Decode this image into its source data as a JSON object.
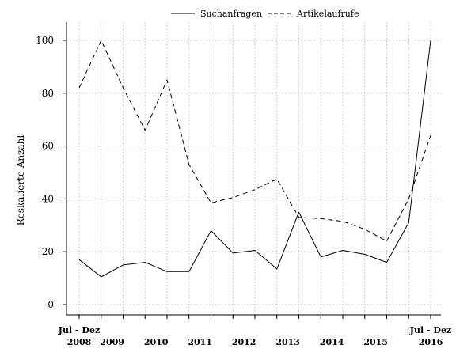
{
  "chart_data": {
    "type": "line",
    "title": "",
    "xlabel": "",
    "ylabel": "Reskalierte Anzahl",
    "ylim": [
      0,
      100
    ],
    "yticks": [
      0,
      20,
      40,
      60,
      80,
      100
    ],
    "grid": true,
    "legend_position": "top",
    "x": [
      "2008H2",
      "2009H1",
      "2009H2",
      "2010H1",
      "2010H2",
      "2011H1",
      "2011H2",
      "2012H1",
      "2012H2",
      "2013H1",
      "2013H2",
      "2014H1",
      "2014H2",
      "2015H1",
      "2015H2",
      "2016H1",
      "2016H2"
    ],
    "x_tick_labels": [
      {
        "period": 0,
        "top": "Jul - Dez",
        "bottom": "2008"
      },
      {
        "period": 1,
        "top": "",
        "bottom": "2009"
      },
      {
        "period": 3,
        "top": "",
        "bottom": "2010"
      },
      {
        "period": 5,
        "top": "",
        "bottom": "2011"
      },
      {
        "period": 7,
        "top": "",
        "bottom": "2012"
      },
      {
        "period": 9,
        "top": "",
        "bottom": "2013"
      },
      {
        "period": 11,
        "top": "",
        "bottom": "2014"
      },
      {
        "period": 13,
        "top": "",
        "bottom": "2015"
      },
      {
        "period": 16,
        "top": "Jul - Dez",
        "bottom": "2016"
      }
    ],
    "series": [
      {
        "name": "Suchanfragen",
        "dash": "solid",
        "color": "#000000",
        "values": [
          17,
          10.5,
          15,
          16,
          12.5,
          12.5,
          28,
          19.5,
          20.5,
          13.5,
          35,
          18,
          20.5,
          19,
          16,
          31,
          100
        ]
      },
      {
        "name": "Artikelaufrufe",
        "dash": "dashed",
        "color": "#000000",
        "values": [
          82,
          100,
          82,
          66,
          85,
          53,
          38.5,
          40.5,
          43.5,
          47.5,
          33,
          32.5,
          31.5,
          28.5,
          24,
          40,
          64
        ]
      }
    ]
  }
}
